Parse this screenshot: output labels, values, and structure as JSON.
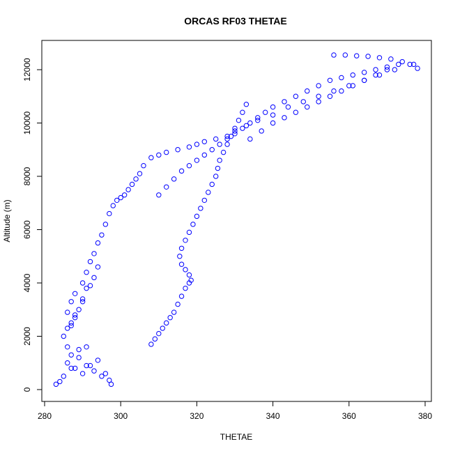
{
  "chart_data": {
    "type": "scatter",
    "title": "ORCAS RF03 THETAE",
    "xlabel": "THETAE",
    "ylabel": "Altitude (m)",
    "xlim": [
      280,
      380
    ],
    "ylim": [
      0,
      13000
    ],
    "xticks": [
      280,
      300,
      320,
      340,
      360,
      380
    ],
    "yticks": [
      0,
      2000,
      4000,
      6000,
      8000,
      10000,
      12000
    ],
    "marker": "open-circle",
    "color": "#0000ff",
    "grid": false,
    "series": [
      {
        "x": [
          283,
          284,
          285,
          287,
          289,
          291,
          286,
          288,
          290,
          292,
          294,
          296,
          297.5,
          297,
          295,
          293,
          291,
          289,
          287,
          286,
          285,
          286,
          287,
          288,
          289,
          290,
          291,
          293,
          294,
          292,
          290,
          288,
          287,
          286,
          287,
          288,
          290,
          291,
          292,
          293,
          294,
          295,
          296,
          297,
          298,
          299,
          300,
          301,
          302,
          303,
          304,
          305,
          306,
          308,
          310,
          312,
          315,
          318,
          320,
          322,
          325,
          328,
          330,
          333,
          336,
          340,
          344,
          348,
          352,
          356,
          360,
          364,
          368,
          372,
          376,
          378,
          377,
          374,
          371,
          368,
          365,
          362,
          359,
          356
        ],
        "y": [
          200,
          300,
          500,
          800,
          1200,
          1600,
          1000,
          800,
          600,
          900,
          1100,
          600,
          200,
          350,
          500,
          700,
          900,
          1500,
          1300,
          1600,
          2000,
          2300,
          2500,
          2800,
          3000,
          3400,
          3800,
          4200,
          4600,
          3900,
          3300,
          2700,
          2400,
          2900,
          3300,
          3600,
          4000,
          4400,
          4800,
          5100,
          5500,
          5800,
          6200,
          6600,
          6900,
          7100,
          7200,
          7300,
          7500,
          7700,
          7900,
          8100,
          8400,
          8700,
          8800,
          8900,
          9000,
          9100,
          9200,
          9300,
          9400,
          9500,
          9700,
          9900,
          10100,
          10300,
          10600,
          10800,
          11000,
          11200,
          11400,
          11600,
          11800,
          12000,
          12200,
          12050,
          12200,
          12300,
          12400,
          12450,
          12500,
          12520,
          12550,
          12550
        ]
      },
      {
        "x": [
          308,
          309,
          310,
          311,
          312,
          313,
          314,
          315,
          316,
          317,
          318,
          318.5,
          318,
          317,
          316,
          315.5,
          316,
          317,
          318,
          319,
          320,
          321,
          322,
          323,
          324,
          325,
          325.5,
          326,
          327,
          328,
          329,
          330,
          331,
          332,
          333
        ],
        "y": [
          1700,
          1900,
          2100,
          2300,
          2500,
          2700,
          2900,
          3200,
          3500,
          3800,
          4000,
          4100,
          4300,
          4500,
          4700,
          5000,
          5300,
          5600,
          5900,
          6200,
          6500,
          6800,
          7100,
          7400,
          7700,
          8000,
          8300,
          8600,
          8900,
          9200,
          9500,
          9800,
          10100,
          10400,
          10700
        ]
      },
      {
        "x": [
          310,
          312,
          314,
          316,
          318,
          320,
          322,
          324,
          326,
          328,
          330,
          332,
          334,
          336,
          338,
          340,
          343,
          346,
          349,
          352,
          355,
          358,
          361,
          364,
          367,
          370,
          373
        ],
        "y": [
          7300,
          7600,
          7900,
          8200,
          8400,
          8600,
          8800,
          9000,
          9200,
          9400,
          9600,
          9800,
          10000,
          10200,
          10400,
          10600,
          10800,
          11000,
          11200,
          11400,
          11600,
          11700,
          11800,
          11900,
          12000,
          12100,
          12200
        ]
      },
      {
        "x": [
          334,
          337,
          340,
          343,
          346,
          349,
          352,
          355,
          358,
          361,
          364,
          367,
          370
        ],
        "y": [
          9400,
          9700,
          10000,
          10200,
          10400,
          10600,
          10800,
          11000,
          11200,
          11400,
          11600,
          11800,
          12000
        ]
      }
    ]
  }
}
